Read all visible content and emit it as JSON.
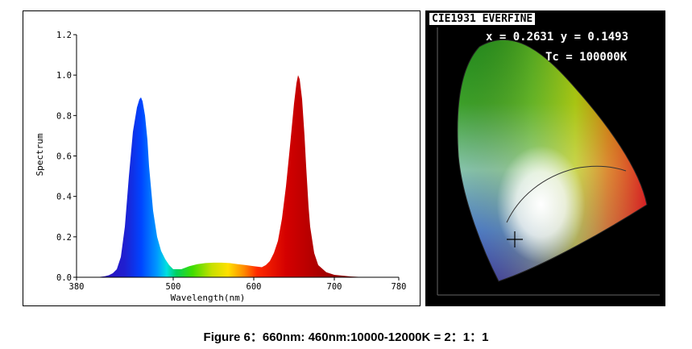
{
  "chart_data": [
    {
      "type": "area",
      "xlabel": "Wavelength(nm)",
      "ylabel": "Spectrum",
      "xlim": [
        380,
        780
      ],
      "ylim": [
        0,
        1.2
      ],
      "xticks": [
        "380",
        "500",
        "600",
        "700",
        "780"
      ],
      "yticks": [
        "0.0",
        "0.2",
        "0.4",
        "0.6",
        "0.8",
        "1.0",
        "1.2"
      ],
      "x": [
        405,
        415,
        420,
        425,
        430,
        435,
        440,
        445,
        450,
        455,
        458,
        460,
        462,
        465,
        468,
        470,
        475,
        480,
        485,
        490,
        495,
        500,
        510,
        520,
        530,
        540,
        550,
        560,
        570,
        580,
        590,
        600,
        610,
        615,
        620,
        625,
        630,
        635,
        640,
        645,
        650,
        653,
        655,
        657,
        660,
        663,
        665,
        668,
        670,
        675,
        680,
        690,
        700,
        720,
        740
      ],
      "values": [
        0.0,
        0.005,
        0.01,
        0.02,
        0.04,
        0.1,
        0.25,
        0.5,
        0.72,
        0.84,
        0.88,
        0.89,
        0.87,
        0.8,
        0.68,
        0.55,
        0.33,
        0.2,
        0.13,
        0.09,
        0.06,
        0.04,
        0.04,
        0.055,
        0.065,
        0.07,
        0.072,
        0.072,
        0.07,
        0.065,
        0.06,
        0.055,
        0.05,
        0.06,
        0.08,
        0.12,
        0.18,
        0.29,
        0.45,
        0.65,
        0.86,
        0.96,
        1.0,
        0.98,
        0.88,
        0.7,
        0.55,
        0.35,
        0.25,
        0.12,
        0.06,
        0.025,
        0.012,
        0.004,
        0.0
      ]
    },
    {
      "type": "other",
      "title": "CIE1931 EVERFINE",
      "xy_text": "x = 0.2631 y = 0.1493",
      "tc_text": "Tc = 100000K",
      "point": {
        "x": 0.2631,
        "y": 0.1493
      }
    }
  ],
  "caption": "Figure 6：660nm: 460nm:10000-12000K = 2：1：1"
}
